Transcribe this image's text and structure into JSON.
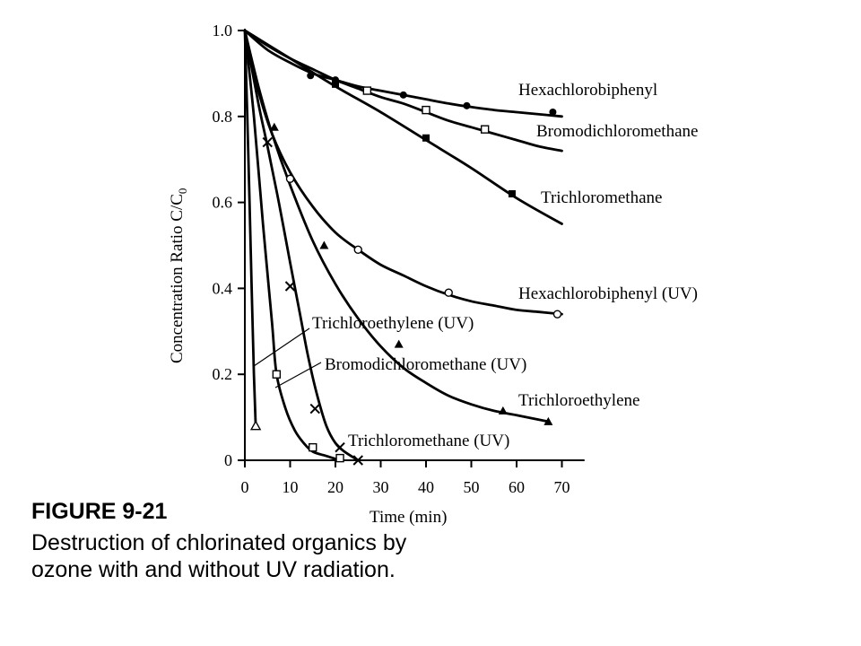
{
  "caption": {
    "title": "FIGURE 9-21",
    "text": "Destruction of chlorinated organics by ozone with and without UV radiation."
  },
  "chart_data": {
    "type": "line",
    "xlabel": "Time (min)",
    "ylabel": "Concentration Ratio C/C",
    "ylabel_subscript": "0",
    "xlim": [
      0,
      75
    ],
    "ylim": [
      0,
      1.0
    ],
    "xticks": [
      0,
      10,
      20,
      30,
      40,
      50,
      60,
      70
    ],
    "yticks": [
      0,
      0.2,
      0.4,
      0.6,
      0.8,
      1.0
    ],
    "xtick_labels": [
      "0",
      "10",
      "20",
      "30",
      "40",
      "50",
      "60",
      "70"
    ],
    "ytick_labels": [
      "0",
      "0.2",
      "0.4",
      "0.6",
      "0.8",
      "1.0"
    ],
    "grid": false,
    "series": [
      {
        "name": "Hexachlorobiphenyl",
        "marker": "filled-circle",
        "curve": [
          [
            0,
            1.0
          ],
          [
            5,
            0.955
          ],
          [
            10,
            0.925
          ],
          [
            15,
            0.9
          ],
          [
            20,
            0.885
          ],
          [
            25,
            0.87
          ],
          [
            30,
            0.86
          ],
          [
            35,
            0.85
          ],
          [
            40,
            0.84
          ],
          [
            45,
            0.83
          ],
          [
            50,
            0.822
          ],
          [
            55,
            0.815
          ],
          [
            60,
            0.81
          ],
          [
            65,
            0.805
          ],
          [
            70,
            0.8
          ]
        ],
        "points": [
          [
            14.5,
            0.895
          ],
          [
            20,
            0.885
          ],
          [
            35,
            0.85
          ],
          [
            49,
            0.825
          ],
          [
            68,
            0.81
          ]
        ]
      },
      {
        "name": "Bromodichloromethane",
        "marker": "open-square",
        "curve": [
          [
            0,
            1.0
          ],
          [
            5,
            0.965
          ],
          [
            10,
            0.935
          ],
          [
            15,
            0.91
          ],
          [
            20,
            0.885
          ],
          [
            25,
            0.865
          ],
          [
            30,
            0.845
          ],
          [
            35,
            0.83
          ],
          [
            40,
            0.81
          ],
          [
            45,
            0.79
          ],
          [
            50,
            0.775
          ],
          [
            55,
            0.76
          ],
          [
            60,
            0.745
          ],
          [
            65,
            0.73
          ],
          [
            70,
            0.72
          ]
        ],
        "points": [
          [
            27,
            0.86
          ],
          [
            40,
            0.815
          ],
          [
            53,
            0.77
          ]
        ]
      },
      {
        "name": "Trichloromethane",
        "marker": "filled-square",
        "curve": [
          [
            0,
            1.0
          ],
          [
            10,
            0.935
          ],
          [
            20,
            0.87
          ],
          [
            30,
            0.81
          ],
          [
            40,
            0.745
          ],
          [
            50,
            0.68
          ],
          [
            60,
            0.61
          ],
          [
            70,
            0.55
          ]
        ],
        "points": [
          [
            20,
            0.875
          ],
          [
            40,
            0.75
          ],
          [
            59,
            0.62
          ]
        ]
      },
      {
        "name": "Hexachlorobiphenyl (UV)",
        "marker": "open-circle",
        "curve": [
          [
            0,
            1.0
          ],
          [
            3,
            0.86
          ],
          [
            6,
            0.76
          ],
          [
            10,
            0.67
          ],
          [
            15,
            0.59
          ],
          [
            20,
            0.53
          ],
          [
            25,
            0.49
          ],
          [
            30,
            0.455
          ],
          [
            35,
            0.43
          ],
          [
            40,
            0.405
          ],
          [
            45,
            0.385
          ],
          [
            50,
            0.37
          ],
          [
            55,
            0.36
          ],
          [
            60,
            0.35
          ],
          [
            65,
            0.345
          ],
          [
            70,
            0.34
          ]
        ],
        "points": [
          [
            10,
            0.655
          ],
          [
            25,
            0.49
          ],
          [
            45,
            0.39
          ],
          [
            69,
            0.34
          ]
        ]
      },
      {
        "name": "Trichloroethylene",
        "marker": "filled-triangle",
        "curve": [
          [
            0,
            1.0
          ],
          [
            3,
            0.87
          ],
          [
            6,
            0.76
          ],
          [
            10,
            0.64
          ],
          [
            15,
            0.51
          ],
          [
            20,
            0.41
          ],
          [
            25,
            0.33
          ],
          [
            30,
            0.265
          ],
          [
            35,
            0.215
          ],
          [
            40,
            0.18
          ],
          [
            45,
            0.15
          ],
          [
            50,
            0.13
          ],
          [
            55,
            0.115
          ],
          [
            60,
            0.105
          ],
          [
            67,
            0.09
          ]
        ],
        "points": [
          [
            6.5,
            0.775
          ],
          [
            17.5,
            0.5
          ],
          [
            34,
            0.27
          ],
          [
            57,
            0.115
          ],
          [
            67,
            0.09
          ]
        ]
      },
      {
        "name": "Trichloromethane (UV)",
        "marker": "x",
        "curve": [
          [
            0,
            1.0
          ],
          [
            3,
            0.83
          ],
          [
            5,
            0.73
          ],
          [
            7.5,
            0.6
          ],
          [
            10,
            0.46
          ],
          [
            12,
            0.35
          ],
          [
            14,
            0.24
          ],
          [
            16,
            0.15
          ],
          [
            18,
            0.08
          ],
          [
            20,
            0.04
          ],
          [
            22,
            0.02
          ],
          [
            25,
            0.0
          ]
        ],
        "points": [
          [
            5,
            0.74
          ],
          [
            10,
            0.405
          ],
          [
            15.5,
            0.12
          ],
          [
            21,
            0.03
          ],
          [
            25,
            0.0
          ]
        ]
      },
      {
        "name": "Bromodichloromethane (UV)",
        "marker": "open-square",
        "curve": [
          [
            0,
            1.0
          ],
          [
            2,
            0.8
          ],
          [
            4,
            0.55
          ],
          [
            6,
            0.32
          ],
          [
            7,
            0.2
          ],
          [
            9,
            0.12
          ],
          [
            11,
            0.07
          ],
          [
            13,
            0.04
          ],
          [
            15,
            0.02
          ],
          [
            18,
            0.01
          ],
          [
            21,
            0.0
          ]
        ],
        "points": [
          [
            7,
            0.2
          ],
          [
            15,
            0.03
          ],
          [
            21,
            0.005
          ]
        ]
      },
      {
        "name": "Trichloroethylene (UV)",
        "marker": "open-triangle",
        "curve": [
          [
            0,
            1.0
          ],
          [
            0.8,
            0.7
          ],
          [
            1.5,
            0.4
          ],
          [
            2,
            0.2
          ],
          [
            2.4,
            0.08
          ]
        ],
        "points": [
          [
            2.4,
            0.08
          ]
        ]
      }
    ]
  }
}
